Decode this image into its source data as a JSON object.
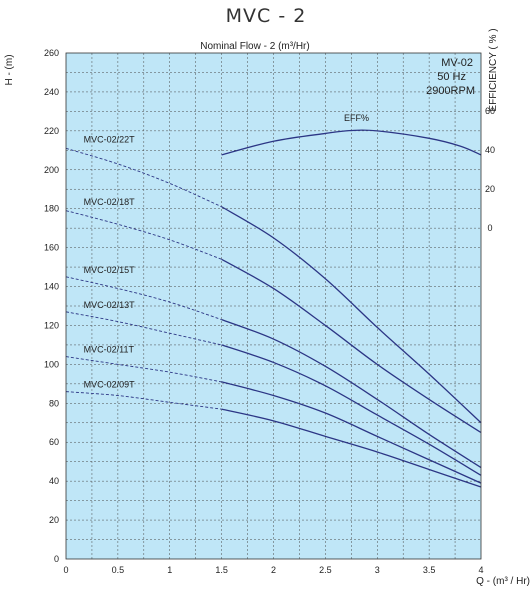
{
  "page_title": "MVC - 2",
  "chart_data": {
    "type": "line",
    "subtitle": "Nominal Flow - 2 (m³/Hr)",
    "ylabel": "H - (m)",
    "xlabel": "Q - (m³ / Hr)",
    "y2label": "EFFICIENCY ( % )",
    "info_lines": [
      "MV-02",
      "50 Hz",
      "2900RPM"
    ],
    "xlim": [
      0,
      4
    ],
    "ylim": [
      0,
      260
    ],
    "y2_ticks": [
      60,
      40,
      20,
      0
    ],
    "x_ticks": [
      "0",
      "0.5",
      "1",
      "1.5",
      "2",
      "2.5",
      "3",
      "3.5",
      "4"
    ],
    "y_ticks": [
      "0",
      "20",
      "40",
      "60",
      "80",
      "100",
      "120",
      "140",
      "160",
      "180",
      "200",
      "220",
      "240",
      "260"
    ],
    "grid": true,
    "colors": {
      "background": "#bfe6f7",
      "curve": "#2c3685",
      "grid": "#4a4a4a"
    },
    "series": [
      {
        "name": "MVC-02/22T",
        "label_at": [
          0.17,
          214
        ],
        "points": [
          [
            0,
            211
          ],
          [
            0.5,
            203
          ],
          [
            1,
            193
          ],
          [
            1.5,
            181
          ],
          [
            2,
            165
          ],
          [
            2.5,
            144
          ],
          [
            3,
            119
          ],
          [
            3.5,
            95
          ],
          [
            4,
            70
          ]
        ]
      },
      {
        "name": "MVC-02/18T",
        "label_at": [
          0.17,
          182
        ],
        "points": [
          [
            0,
            179
          ],
          [
            0.5,
            172
          ],
          [
            1,
            164
          ],
          [
            1.5,
            154
          ],
          [
            2,
            139
          ],
          [
            2.5,
            120
          ],
          [
            3,
            100
          ],
          [
            3.5,
            82
          ],
          [
            4,
            65
          ]
        ]
      },
      {
        "name": "MVC-02/15T",
        "label_at": [
          0.17,
          147
        ],
        "points": [
          [
            0,
            145
          ],
          [
            0.5,
            139
          ],
          [
            1,
            132
          ],
          [
            1.5,
            123
          ],
          [
            2,
            113
          ],
          [
            2.5,
            99
          ],
          [
            3,
            82
          ],
          [
            3.5,
            64
          ],
          [
            4,
            47
          ]
        ]
      },
      {
        "name": "MVC-02/13T",
        "label_at": [
          0.17,
          129
        ],
        "points": [
          [
            0,
            127
          ],
          [
            0.5,
            122
          ],
          [
            1,
            116
          ],
          [
            1.5,
            110
          ],
          [
            2,
            101
          ],
          [
            2.5,
            89
          ],
          [
            3,
            74
          ],
          [
            3.5,
            59
          ],
          [
            4,
            43
          ]
        ]
      },
      {
        "name": "MVC-02/11T",
        "label_at": [
          0.17,
          106
        ],
        "points": [
          [
            0,
            104
          ],
          [
            0.5,
            100
          ],
          [
            1,
            96
          ],
          [
            1.5,
            91
          ],
          [
            2,
            84
          ],
          [
            2.5,
            75
          ],
          [
            3,
            63
          ],
          [
            3.5,
            51
          ],
          [
            4,
            39
          ]
        ]
      },
      {
        "name": "MVC-02/09T",
        "label_at": [
          0.17,
          88
        ],
        "points": [
          [
            0,
            86
          ],
          [
            0.5,
            84
          ],
          [
            1,
            80.5
          ],
          [
            1.5,
            77
          ],
          [
            2,
            71
          ],
          [
            2.5,
            63
          ],
          [
            3,
            55
          ],
          [
            3.5,
            46
          ],
          [
            4,
            37
          ]
        ]
      }
    ],
    "efficiency": {
      "name": "EFF%",
      "label_at": [
        2.8,
        55
      ],
      "points": [
        [
          1.5,
          37.5
        ],
        [
          2,
          44.5
        ],
        [
          2.5,
          48.5
        ],
        [
          2.75,
          50
        ],
        [
          3,
          49.8
        ],
        [
          3.5,
          46
        ],
        [
          3.8,
          42
        ],
        [
          4,
          37.5
        ]
      ]
    },
    "dashed_until_x": 1.5
  }
}
